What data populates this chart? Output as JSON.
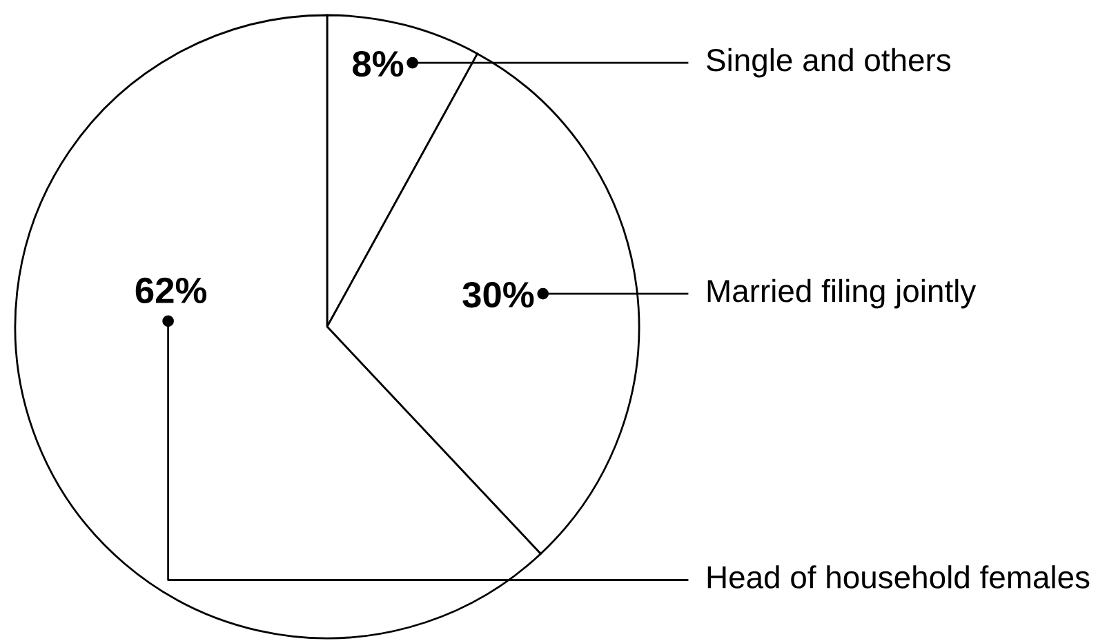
{
  "chart_data": {
    "type": "pie",
    "categories": [
      "Single and others",
      "Married filing jointly",
      "Head of household females"
    ],
    "values": [
      8,
      30,
      62
    ],
    "colors": [
      "#ffffff",
      "#ffffff",
      "#ffffff"
    ],
    "value_labels": [
      "8%",
      "30%",
      "62%"
    ]
  }
}
